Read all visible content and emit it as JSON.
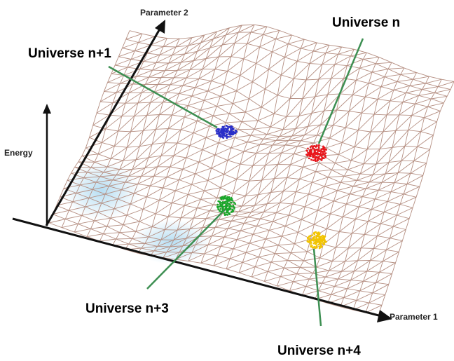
{
  "axes": {
    "parameter2": "Parameter 2",
    "parameter1": "Parameter 1",
    "energy": "Energy"
  },
  "universes": [
    {
      "label": "Universe n",
      "color": "#e8151b"
    },
    {
      "label": "Universe n+1",
      "color": "#2a2fc8"
    },
    {
      "label": "Universe n+3",
      "color": "#1aa62a"
    },
    {
      "label": "Universe n+4",
      "color": "#f2c400"
    }
  ],
  "colors": {
    "mesh": "#b58f82",
    "pointer": "#3d8f52",
    "axis": "#111111",
    "basin": "#9ed3ef"
  }
}
